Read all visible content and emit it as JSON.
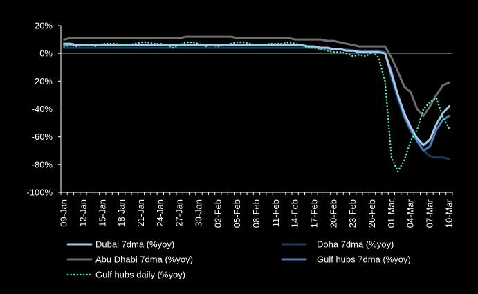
{
  "chart_data": {
    "type": "line",
    "title": "",
    "xlabel": "",
    "ylabel": "",
    "x": [
      "09-Jan",
      "10-Jan",
      "11-Jan",
      "12-Jan",
      "13-Jan",
      "14-Jan",
      "15-Jan",
      "16-Jan",
      "17-Jan",
      "18-Jan",
      "19-Jan",
      "20-Jan",
      "21-Jan",
      "22-Jan",
      "23-Jan",
      "24-Jan",
      "25-Jan",
      "26-Jan",
      "27-Jan",
      "28-Jan",
      "29-Jan",
      "30-Jan",
      "31-Jan",
      "01-Feb",
      "02-Feb",
      "03-Feb",
      "04-Feb",
      "05-Feb",
      "06-Feb",
      "07-Feb",
      "08-Feb",
      "09-Feb",
      "10-Feb",
      "11-Feb",
      "12-Feb",
      "13-Feb",
      "14-Feb",
      "15-Feb",
      "16-Feb",
      "17-Feb",
      "18-Feb",
      "19-Feb",
      "20-Feb",
      "21-Feb",
      "22-Feb",
      "23-Feb",
      "24-Feb",
      "25-Feb",
      "26-Feb",
      "27-Feb",
      "28-Feb",
      "01-Mar",
      "02-Mar",
      "03-Mar",
      "04-Mar",
      "05-Mar",
      "06-Mar",
      "07-Mar",
      "08-Mar",
      "09-Mar",
      "10-Mar"
    ],
    "x_tick_labels": [
      "09-Jan",
      "12-Jan",
      "15-Jan",
      "18-Jan",
      "21-Jan",
      "24-Jan",
      "27-Jan",
      "30-Jan",
      "02-Feb",
      "05-Feb",
      "08-Feb",
      "11-Feb",
      "14-Feb",
      "17-Feb",
      "20-Feb",
      "23-Feb",
      "26-Feb",
      "01-Mar",
      "04-Mar",
      "07-Mar",
      "10-Mar"
    ],
    "y_tick_labels": [
      "20%",
      "0%",
      "-20%",
      "-40%",
      "-60%",
      "-80%",
      "-100%"
    ],
    "y_ticks": [
      20,
      0,
      -20,
      -40,
      -60,
      -80,
      -100
    ],
    "ylim": [
      -100,
      20
    ],
    "grid": false,
    "legend_position": "bottom",
    "series": [
      {
        "name": "Dubai 7dma (%yoy)",
        "color": "#a9c8ea",
        "style": "solid",
        "values": [
          7,
          7,
          6,
          6,
          6,
          6,
          6,
          6,
          6,
          6,
          6,
          6,
          6,
          6,
          6,
          6,
          6,
          6,
          6,
          6,
          6,
          6,
          6,
          6,
          6,
          6,
          6,
          6,
          6,
          6,
          6,
          6,
          6,
          6,
          6,
          6,
          6,
          6,
          5,
          5,
          4,
          4,
          3,
          3,
          2,
          2,
          1,
          1,
          1,
          1,
          0,
          -15,
          -30,
          -43,
          -53,
          -61,
          -66,
          -62,
          -51,
          -43,
          -38
        ]
      },
      {
        "name": "Doha 7dma (%yoy)",
        "color": "#1e3a5c",
        "style": "solid",
        "values": [
          4,
          4,
          4,
          4,
          4,
          4,
          4,
          4,
          4,
          4,
          4,
          4,
          4,
          4,
          4,
          4,
          4,
          4,
          4,
          4,
          4,
          4,
          4,
          4,
          4,
          4,
          4,
          4,
          4,
          4,
          4,
          4,
          4,
          4,
          4,
          4,
          4,
          4,
          4,
          4,
          3,
          3,
          3,
          3,
          3,
          2,
          2,
          2,
          2,
          2,
          1,
          -18,
          -33,
          -46,
          -56,
          -63,
          -70,
          -74,
          -75,
          -75,
          -76
        ]
      },
      {
        "name": "Abu Dhabi 7dma (%yoy)",
        "color": "#6e6e6e",
        "style": "solid",
        "values": [
          10,
          11,
          11,
          11,
          11,
          11,
          11,
          11,
          11,
          11,
          11,
          11,
          11,
          11,
          11,
          11,
          11,
          11,
          11,
          12,
          12,
          12,
          12,
          12,
          12,
          12,
          12,
          11,
          11,
          11,
          11,
          11,
          11,
          11,
          11,
          11,
          10,
          10,
          10,
          10,
          10,
          9,
          9,
          8,
          7,
          6,
          5,
          5,
          5,
          5,
          5,
          -3,
          -13,
          -24,
          -28,
          -40,
          -45,
          -38,
          -30,
          -23,
          -21
        ]
      },
      {
        "name": "Gulf hubs 7dma (%yoy)",
        "color": "#4a7fc0",
        "style": "solid",
        "values": [
          6,
          6,
          6,
          6,
          6,
          6,
          6,
          6,
          6,
          6,
          6,
          6,
          6,
          6,
          6,
          6,
          6,
          6,
          6,
          6,
          6,
          6,
          6,
          6,
          6,
          6,
          6,
          6,
          6,
          6,
          6,
          6,
          6,
          6,
          6,
          6,
          6,
          6,
          5,
          5,
          4,
          4,
          3,
          3,
          2,
          2,
          1,
          1,
          1,
          1,
          0,
          -13,
          -30,
          -45,
          -55,
          -63,
          -70,
          -67,
          -55,
          -48,
          -45
        ]
      },
      {
        "name": "Gulf hubs daily (%yoy)",
        "color": "#62e6b4",
        "style": "dotted",
        "values": [
          5,
          6,
          5,
          6,
          6,
          5,
          7,
          7,
          7,
          6,
          6,
          7,
          8,
          8,
          7,
          7,
          6,
          4,
          6,
          8,
          8,
          7,
          5,
          6,
          5,
          6,
          7,
          8,
          8,
          7,
          6,
          6,
          7,
          7,
          7,
          8,
          7,
          6,
          4,
          4,
          3,
          2,
          1,
          1,
          0,
          -2,
          -1,
          -2,
          1,
          -3,
          -20,
          -75,
          -85,
          -77,
          -63,
          -55,
          -40,
          -35,
          -32,
          -46,
          -54
        ]
      }
    ]
  }
}
